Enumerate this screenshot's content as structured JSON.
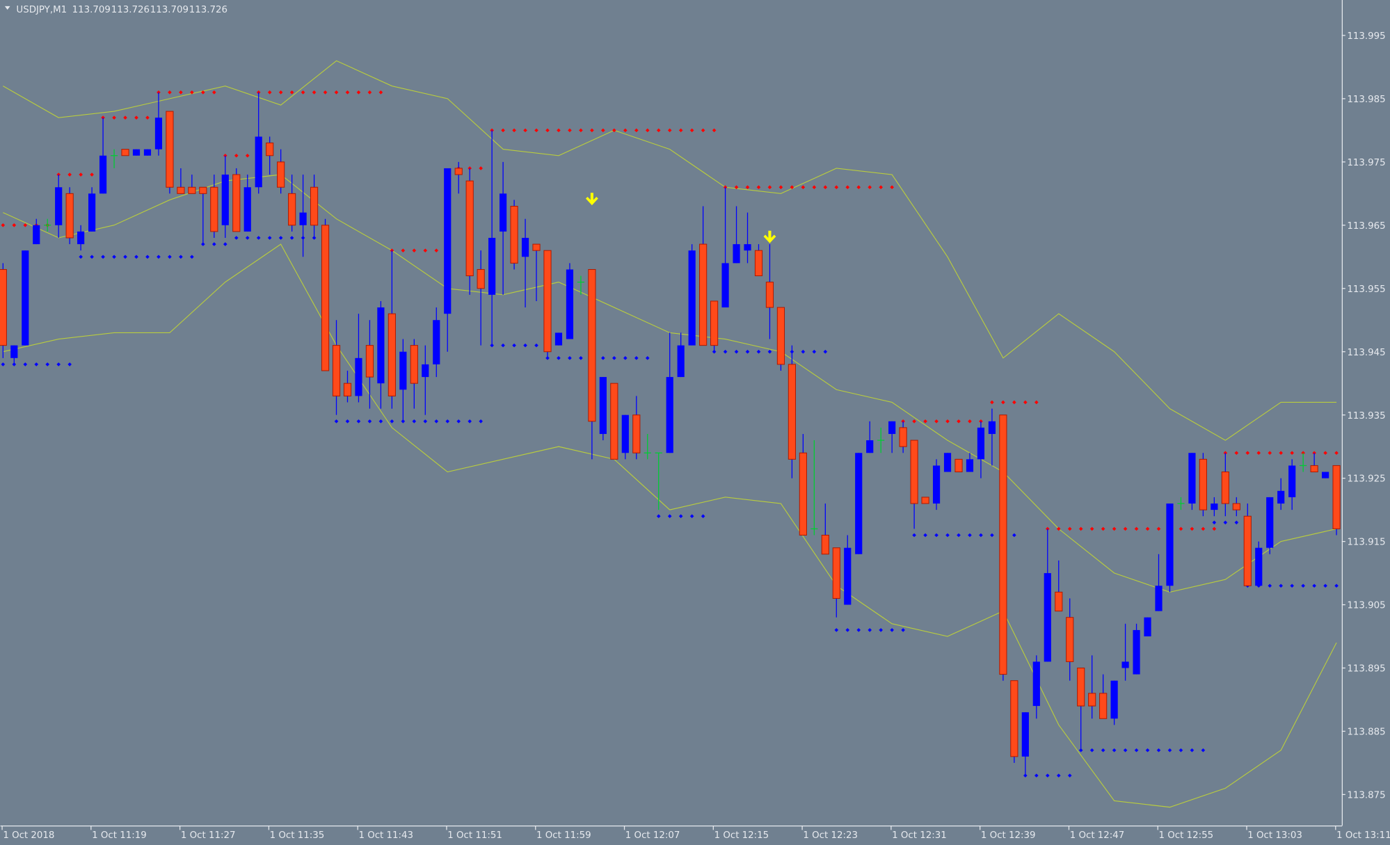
{
  "chart_data": {
    "type": "candlestick",
    "title": "USDJPY,M1",
    "header_values": [
      113.709,
      113.726,
      113.709,
      113.726
    ],
    "categories": [
      "1 Oct 2018",
      null,
      null,
      null,
      null,
      null,
      null,
      null,
      "1 Oct 11:19",
      null,
      null,
      null,
      null,
      null,
      null,
      null,
      "1 Oct 11:27",
      null,
      null,
      null,
      null,
      null,
      null,
      null,
      "1 Oct 11:35",
      null,
      null,
      null,
      null,
      null,
      null,
      null,
      "1 Oct 11:43",
      null,
      null,
      null,
      null,
      null,
      null,
      null,
      "1 Oct 11:51",
      null,
      null,
      null,
      null,
      null,
      null,
      null,
      "1 Oct 11:59",
      null,
      null,
      null,
      null,
      null,
      null,
      null,
      "1 Oct 12:07",
      null,
      null,
      null,
      null,
      null,
      null,
      null,
      "1 Oct 12:15",
      null,
      null,
      null,
      null,
      null,
      null,
      null,
      "1 Oct 12:23",
      null,
      null,
      null,
      null,
      null,
      null,
      null,
      "1 Oct 12:31",
      null,
      null,
      null,
      null,
      null,
      null,
      null,
      "1 Oct 12:39",
      null,
      null,
      null,
      null,
      null,
      null,
      null,
      "1 Oct 12:47",
      null,
      null,
      null,
      null,
      null,
      null,
      null,
      "1 Oct 12:55",
      null,
      null,
      null,
      null,
      null,
      null,
      null,
      "1 Oct 13:03",
      null,
      null,
      null,
      null,
      null,
      null,
      null,
      "1 Oct 13:11"
    ],
    "open": [
      113.958,
      113.944,
      113.946,
      113.962,
      113.965,
      113.965,
      113.97,
      113.962,
      113.964,
      113.97,
      113.976,
      113.977,
      113.976,
      113.976,
      113.977,
      113.983,
      113.971,
      113.971,
      113.971,
      113.971,
      113.965,
      113.973,
      113.964,
      113.971,
      113.978,
      113.975,
      113.97,
      113.965,
      113.971,
      113.965,
      113.946,
      113.94,
      113.938,
      113.946,
      113.94,
      113.951,
      113.939,
      113.946,
      113.941,
      113.943,
      113.951,
      113.974,
      113.972,
      113.958,
      113.954,
      113.964,
      113.968,
      113.96,
      113.962,
      113.961,
      113.946,
      113.947,
      113.956,
      113.958,
      113.932,
      113.94,
      113.929,
      113.935,
      113.929,
      113.929,
      113.929,
      113.941,
      113.946,
      113.962,
      113.953,
      113.952,
      113.959,
      113.961,
      113.961,
      113.956,
      113.952,
      113.943,
      113.929,
      113.917,
      113.916,
      113.914,
      113.905,
      113.913,
      113.929,
      113.931,
      113.932,
      113.933,
      113.931,
      113.922,
      113.921,
      113.926,
      113.928,
      113.926,
      113.928,
      113.932,
      113.935,
      113.893,
      113.881,
      113.889,
      113.896,
      113.907,
      113.903,
      113.895,
      113.891,
      113.891,
      113.887,
      113.895,
      113.894,
      113.9,
      113.904,
      113.908,
      113.921,
      113.921,
      113.928,
      113.92,
      113.926,
      113.921,
      113.919,
      113.908,
      113.914,
      113.921,
      113.922,
      113.927,
      113.927,
      113.925,
      113.927
    ],
    "high": [
      113.959,
      113.946,
      113.961,
      113.966,
      113.966,
      113.973,
      113.971,
      113.965,
      113.971,
      113.982,
      113.977,
      113.977,
      113.977,
      113.977,
      113.986,
      113.983,
      113.974,
      113.973,
      113.971,
      113.973,
      113.976,
      113.974,
      113.973,
      113.986,
      113.979,
      113.977,
      113.973,
      113.973,
      113.973,
      113.966,
      113.95,
      113.942,
      113.951,
      113.95,
      113.953,
      113.961,
      113.947,
      113.947,
      113.946,
      113.952,
      113.974,
      113.975,
      113.974,
      113.961,
      113.98,
      113.975,
      113.969,
      113.966,
      113.962,
      113.961,
      113.948,
      113.959,
      113.957,
      113.958,
      113.941,
      113.94,
      113.935,
      113.938,
      113.932,
      113.929,
      113.948,
      113.948,
      113.962,
      113.968,
      113.953,
      113.971,
      113.968,
      113.967,
      113.962,
      113.962,
      113.952,
      113.946,
      113.932,
      113.931,
      113.921,
      113.914,
      113.916,
      113.929,
      113.934,
      113.933,
      113.934,
      113.934,
      113.931,
      113.922,
      113.928,
      113.929,
      113.928,
      113.929,
      113.934,
      113.936,
      113.935,
      113.893,
      113.888,
      113.897,
      113.917,
      113.912,
      113.906,
      113.895,
      113.897,
      113.894,
      113.893,
      113.902,
      113.902,
      113.903,
      113.913,
      113.921,
      113.922,
      113.929,
      113.929,
      113.922,
      113.929,
      113.922,
      113.921,
      113.915,
      113.922,
      113.925,
      113.928,
      113.929,
      113.929,
      113.926,
      113.927
    ],
    "low": [
      113.944,
      113.943,
      113.946,
      113.962,
      113.964,
      113.963,
      113.962,
      113.961,
      113.964,
      113.97,
      113.974,
      113.976,
      113.976,
      113.976,
      113.976,
      113.97,
      113.97,
      113.97,
      113.962,
      113.963,
      113.963,
      113.964,
      113.964,
      113.97,
      113.973,
      113.97,
      113.964,
      113.96,
      113.963,
      113.942,
      113.935,
      113.937,
      113.937,
      113.936,
      113.936,
      113.936,
      113.934,
      113.936,
      113.935,
      113.941,
      113.945,
      113.97,
      113.954,
      113.946,
      113.946,
      113.954,
      113.958,
      113.952,
      113.953,
      113.944,
      113.946,
      113.947,
      113.954,
      113.928,
      113.931,
      113.928,
      113.928,
      113.928,
      113.928,
      113.92,
      113.929,
      113.941,
      113.946,
      113.946,
      113.945,
      113.952,
      113.959,
      113.959,
      113.957,
      113.947,
      113.942,
      113.925,
      113.916,
      113.916,
      113.913,
      113.903,
      113.905,
      113.913,
      113.929,
      113.929,
      113.929,
      113.929,
      113.917,
      113.921,
      113.92,
      113.926,
      113.926,
      113.926,
      113.925,
      113.927,
      113.893,
      113.88,
      113.878,
      113.887,
      113.896,
      113.904,
      113.893,
      113.882,
      113.887,
      113.887,
      113.886,
      113.893,
      113.894,
      113.9,
      113.904,
      113.907,
      113.92,
      113.92,
      113.919,
      113.919,
      113.919,
      113.919,
      113.908,
      113.908,
      113.913,
      113.92,
      113.92,
      113.926,
      113.926,
      113.925,
      113.916
    ],
    "close": [
      113.946,
      113.946,
      113.961,
      113.965,
      113.965,
      113.971,
      113.963,
      113.964,
      113.97,
      113.976,
      113.976,
      113.976,
      113.977,
      113.977,
      113.982,
      113.971,
      113.97,
      113.97,
      113.97,
      113.964,
      113.973,
      113.964,
      113.971,
      113.979,
      113.976,
      113.971,
      113.965,
      113.967,
      113.965,
      113.942,
      113.938,
      113.938,
      113.944,
      113.941,
      113.952,
      113.938,
      113.945,
      113.94,
      113.943,
      113.95,
      113.974,
      113.973,
      113.957,
      113.955,
      113.963,
      113.97,
      113.959,
      113.963,
      113.961,
      113.945,
      113.948,
      113.958,
      113.956,
      113.934,
      113.941,
      113.928,
      113.935,
      113.929,
      113.929,
      113.929,
      113.941,
      113.946,
      113.961,
      113.946,
      113.946,
      113.959,
      113.962,
      113.962,
      113.957,
      113.952,
      113.943,
      113.928,
      113.916,
      113.917,
      113.913,
      113.906,
      113.914,
      113.929,
      113.931,
      113.931,
      113.934,
      113.93,
      113.921,
      113.921,
      113.927,
      113.929,
      113.926,
      113.928,
      113.933,
      113.934,
      113.894,
      113.881,
      113.888,
      113.896,
      113.91,
      113.904,
      113.896,
      113.889,
      113.889,
      113.887,
      113.893,
      113.896,
      113.901,
      113.903,
      113.908,
      113.921,
      113.921,
      113.929,
      113.92,
      113.921,
      113.921,
      113.92,
      113.908,
      113.914,
      113.922,
      113.923,
      113.927,
      113.927,
      113.926,
      113.926,
      113.917
    ],
    "bull_color": "#0000ff",
    "bear_color": "#ff4a1a",
    "doji_color": "#00cc33",
    "wick_color": "#0000ff",
    "background": "#708090",
    "ylim": [
      113.8701,
      114.0006
    ],
    "yticks": [
      113.875,
      113.885,
      113.895,
      113.905,
      113.915,
      113.925,
      113.935,
      113.945,
      113.955,
      113.965,
      113.975,
      113.985,
      113.995
    ],
    "bands": [
      {
        "color": "#b9cc3e",
        "x": [
          0,
          5,
          10,
          15,
          20,
          25,
          30,
          35,
          40,
          45,
          50,
          55,
          60,
          65,
          70,
          75,
          80,
          85,
          90,
          95,
          100,
          105,
          110,
          115,
          120
        ],
        "values": [
          113.987,
          113.982,
          113.983,
          113.985,
          113.987,
          113.984,
          113.991,
          113.987,
          113.985,
          113.977,
          113.976,
          113.98,
          113.977,
          113.971,
          113.97,
          113.974,
          113.973,
          113.96,
          113.944,
          113.951,
          113.945,
          113.936,
          113.931,
          113.937,
          113.937
        ]
      },
      {
        "color": "#b9cc3e",
        "x": [
          0,
          5,
          10,
          15,
          20,
          25,
          30,
          35,
          40,
          45,
          50,
          55,
          60,
          65,
          70,
          75,
          80,
          85,
          90,
          95,
          100,
          105,
          110,
          115,
          120
        ],
        "values": [
          113.967,
          113.963,
          113.965,
          113.969,
          113.972,
          113.973,
          113.966,
          113.961,
          113.955,
          113.954,
          113.956,
          113.952,
          113.948,
          113.947,
          113.945,
          113.939,
          113.937,
          113.931,
          113.926,
          113.917,
          113.91,
          113.907,
          113.909,
          113.915,
          113.917
        ]
      },
      {
        "color": "#b9cc3e",
        "x": [
          0,
          5,
          10,
          15,
          20,
          25,
          30,
          35,
          40,
          45,
          50,
          55,
          60,
          65,
          70,
          75,
          80,
          85,
          90,
          95,
          100,
          105,
          110,
          115,
          120
        ],
        "values": [
          113.945,
          113.947,
          113.948,
          113.948,
          113.956,
          113.962,
          113.946,
          113.933,
          113.926,
          113.928,
          113.93,
          113.928,
          113.92,
          113.922,
          113.921,
          113.908,
          113.902,
          113.9,
          113.904,
          113.886,
          113.874,
          113.873,
          113.876,
          113.882,
          113.899
        ]
      }
    ],
    "levels": [
      {
        "price": 113.965,
        "from": 0,
        "to": 4,
        "color": "#ff0000"
      },
      {
        "price": 113.973,
        "from": 5,
        "to": 8,
        "color": "#ff0000"
      },
      {
        "price": 113.982,
        "from": 9,
        "to": 13,
        "color": "#ff0000"
      },
      {
        "price": 113.986,
        "from": 14,
        "to": 19,
        "color": "#ff0000"
      },
      {
        "price": 113.976,
        "from": 20,
        "to": 22,
        "color": "#ff0000"
      },
      {
        "price": 113.986,
        "from": 23,
        "to": 34,
        "color": "#ff0000"
      },
      {
        "price": 113.961,
        "from": 35,
        "to": 39,
        "color": "#ff0000"
      },
      {
        "price": 113.974,
        "from": 41,
        "to": 43,
        "color": "#ff0000"
      },
      {
        "price": 113.98,
        "from": 44,
        "to": 64,
        "color": "#ff0000"
      },
      {
        "price": 113.971,
        "from": 65,
        "to": 80,
        "color": "#ff0000"
      },
      {
        "price": 113.934,
        "from": 81,
        "to": 88,
        "color": "#ff0000"
      },
      {
        "price": 113.937,
        "from": 89,
        "to": 93,
        "color": "#ff0000"
      },
      {
        "price": 113.917,
        "from": 94,
        "to": 104,
        "color": "#ff0000"
      },
      {
        "price": 113.917,
        "from": 106,
        "to": 109,
        "color": "#ff0000"
      },
      {
        "price": 113.929,
        "from": 110,
        "to": 120,
        "color": "#ff0000"
      },
      {
        "price": 113.943,
        "from": 0,
        "to": 6,
        "color": "#0000ff"
      },
      {
        "price": 113.96,
        "from": 7,
        "to": 17,
        "color": "#0000ff"
      },
      {
        "price": 113.962,
        "from": 18,
        "to": 20,
        "color": "#0000ff"
      },
      {
        "price": 113.963,
        "from": 21,
        "to": 28,
        "color": "#0000ff"
      },
      {
        "price": 113.934,
        "from": 30,
        "to": 43,
        "color": "#0000ff"
      },
      {
        "price": 113.946,
        "from": 44,
        "to": 48,
        "color": "#0000ff"
      },
      {
        "price": 113.944,
        "from": 49,
        "to": 58,
        "color": "#0000ff"
      },
      {
        "price": 113.919,
        "from": 59,
        "to": 63,
        "color": "#0000ff"
      },
      {
        "price": 113.945,
        "from": 64,
        "to": 74,
        "color": "#0000ff"
      },
      {
        "price": 113.901,
        "from": 75,
        "to": 81,
        "color": "#0000ff"
      },
      {
        "price": 113.916,
        "from": 82,
        "to": 91,
        "color": "#0000ff"
      },
      {
        "price": 113.878,
        "from": 92,
        "to": 96,
        "color": "#0000ff"
      },
      {
        "price": 113.882,
        "from": 97,
        "to": 108,
        "color": "#0000ff"
      },
      {
        "price": 113.918,
        "from": 109,
        "to": 111,
        "color": "#0000ff"
      },
      {
        "price": 113.908,
        "from": 112,
        "to": 120,
        "color": "#0000ff"
      }
    ],
    "signals": [
      {
        "bar": 53,
        "price": 113.969
      },
      {
        "bar": 69,
        "price": 113.963
      }
    ],
    "signal_color": "#ffff00"
  }
}
